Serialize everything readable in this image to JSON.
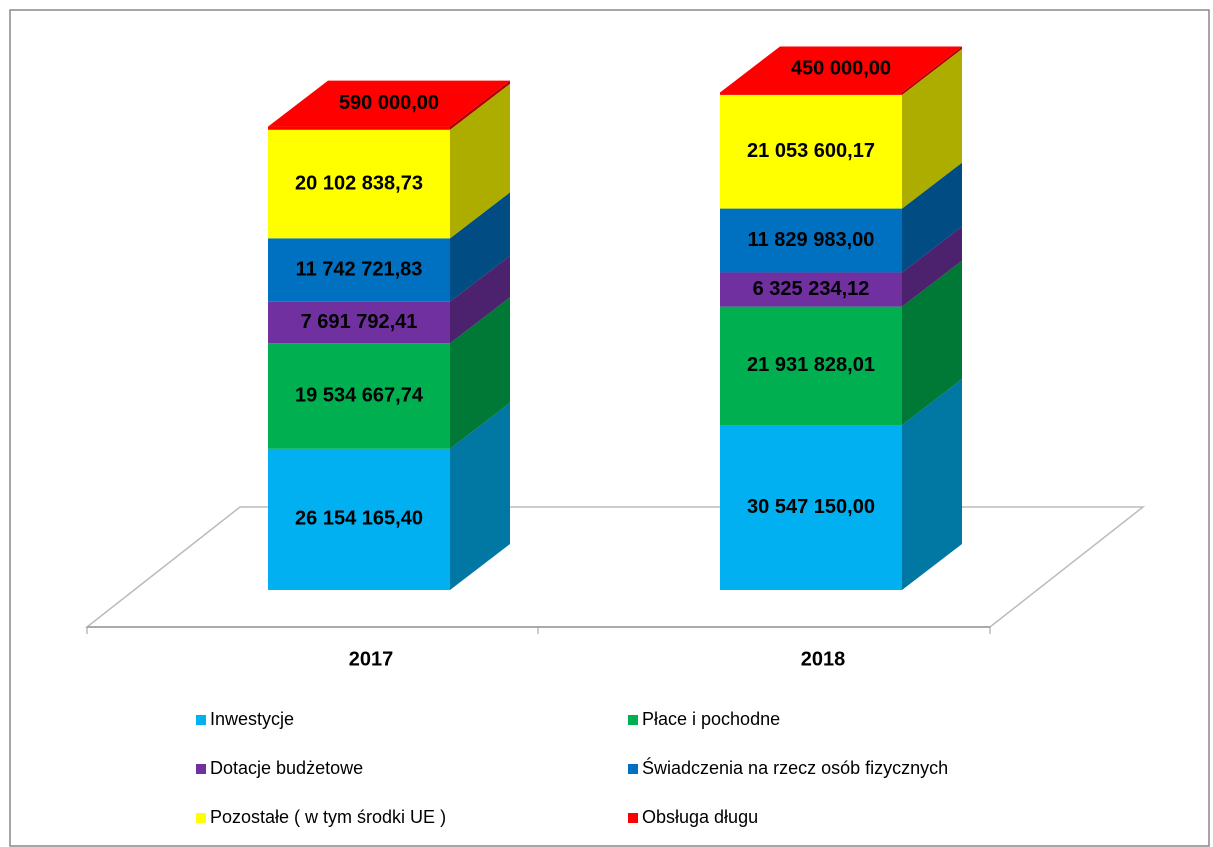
{
  "chart_data": {
    "type": "bar3d-stacked",
    "categories": [
      "2017",
      "2018"
    ],
    "series": [
      {
        "name": "Inwestycje",
        "color": "#00b0f0",
        "values": [
          26154165.4,
          30547150.0
        ],
        "value_labels": [
          "26 154 165,40",
          "30 547 150,00"
        ]
      },
      {
        "name": "Płace i pochodne",
        "color": "#00b050",
        "values": [
          19534667.74,
          21931828.01
        ],
        "value_labels": [
          "19 534 667,74",
          "21 931 828,01"
        ]
      },
      {
        "name": "Dotacje budżetowe",
        "color": "#7030a0",
        "values": [
          7691792.41,
          6325234.12
        ],
        "value_labels": [
          "7 691 792,41",
          "6 325 234,12"
        ]
      },
      {
        "name": "Świadczenia na rzecz osób fizycznych",
        "color": "#0070c0",
        "values": [
          11742721.83,
          11829983.0
        ],
        "value_labels": [
          "11 742 721,83",
          "11 829 983,00"
        ]
      },
      {
        "name": "Pozostałe ( w tym środki UE )",
        "color": "#ffff00",
        "values": [
          20102838.73,
          21053600.17
        ],
        "value_labels": [
          "20 102 838,73",
          "21 053 600,17"
        ]
      },
      {
        "name": "Obsługa długu",
        "color": "#ff0000",
        "values": [
          590000.0,
          450000.0
        ],
        "value_labels": [
          "590 000,00",
          "450 000,00"
        ]
      }
    ],
    "ylim": [
      0,
      90000000
    ]
  }
}
